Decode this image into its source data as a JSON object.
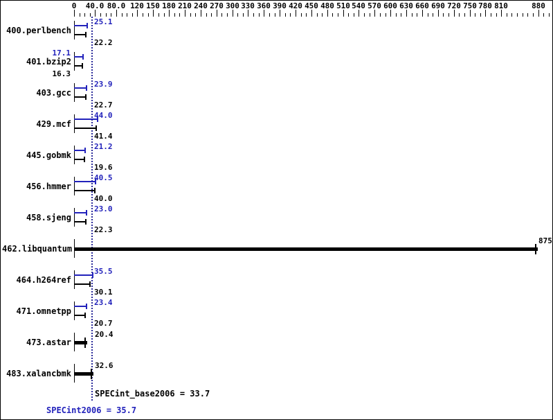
{
  "chart_data": {
    "type": "bar",
    "orientation": "horizontal",
    "title": "",
    "xlabel": "",
    "ylabel": "",
    "axis": {
      "min": 0,
      "max": 880,
      "minor_tick_step": 10,
      "labels": [
        {
          "text": "0",
          "value": 0
        },
        {
          "text": "40.0",
          "value": 40
        },
        {
          "text": "80.0",
          "value": 80
        },
        {
          "text": "120",
          "value": 120
        },
        {
          "text": "150",
          "value": 150
        },
        {
          "text": "180",
          "value": 180
        },
        {
          "text": "210",
          "value": 210
        },
        {
          "text": "240",
          "value": 240
        },
        {
          "text": "270",
          "value": 270
        },
        {
          "text": "300",
          "value": 300
        },
        {
          "text": "330",
          "value": 330
        },
        {
          "text": "360",
          "value": 360
        },
        {
          "text": "390",
          "value": 390
        },
        {
          "text": "420",
          "value": 420
        },
        {
          "text": "450",
          "value": 450
        },
        {
          "text": "480",
          "value": 480
        },
        {
          "text": "510",
          "value": 510
        },
        {
          "text": "540",
          "value": 540
        },
        {
          "text": "570",
          "value": 570
        },
        {
          "text": "600",
          "value": 600
        },
        {
          "text": "630",
          "value": 630
        },
        {
          "text": "660",
          "value": 660
        },
        {
          "text": "690",
          "value": 690
        },
        {
          "text": "720",
          "value": 720
        },
        {
          "text": "750",
          "value": 750
        },
        {
          "text": "780",
          "value": 780
        },
        {
          "text": "810",
          "value": 810
        },
        {
          "text": "880",
          "value": 880
        }
      ]
    },
    "series": [
      {
        "name": "SPECint2006",
        "color": "#2222bb"
      },
      {
        "name": "SPECint_base2006",
        "color": "#000000"
      }
    ],
    "benchmarks": [
      {
        "name": "400.perlbench",
        "peak": 25.1,
        "peak_label": "25.1",
        "base": 22.2,
        "base_label": "22.2",
        "value_label_position": "right_of_mean_line"
      },
      {
        "name": "401.bzip2",
        "peak": 17.1,
        "peak_label": "17.1",
        "base": 16.3,
        "base_label": "16.3",
        "value_label_position": "left_of_bars"
      },
      {
        "name": "403.gcc",
        "peak": 23.9,
        "peak_label": "23.9",
        "base": 22.7,
        "base_label": "22.7",
        "value_label_position": "right_of_mean_line"
      },
      {
        "name": "429.mcf",
        "peak": 44.0,
        "peak_label": "44.0",
        "base": 41.4,
        "base_label": "41.4",
        "value_label_position": "right_of_mean_line"
      },
      {
        "name": "445.gobmk",
        "peak": 21.2,
        "peak_label": "21.2",
        "base": 19.6,
        "base_label": "19.6",
        "value_label_position": "right_of_mean_line"
      },
      {
        "name": "456.hmmer",
        "peak": 40.5,
        "peak_label": "40.5",
        "base": 40.0,
        "base_label": "40.0",
        "value_label_position": "right_of_mean_line"
      },
      {
        "name": "458.sjeng",
        "peak": 23.0,
        "peak_label": "23.0",
        "base": 22.3,
        "base_label": "22.3",
        "value_label_position": "right_of_mean_line"
      },
      {
        "name": "462.libquantum",
        "single_bar": true,
        "value": 875,
        "value_label": "875",
        "value_label_position": "bar_end"
      },
      {
        "name": "464.h264ref",
        "peak": 35.5,
        "peak_label": "35.5",
        "base": 30.1,
        "base_label": "30.1",
        "value_label_position": "right_of_mean_line"
      },
      {
        "name": "471.omnetpp",
        "peak": 23.4,
        "peak_label": "23.4",
        "base": 20.7,
        "base_label": "20.7",
        "value_label_position": "right_of_mean_line"
      },
      {
        "name": "473.astar",
        "single_bar": true,
        "value": 20.4,
        "value_label": "20.4",
        "value_label_position": "right_of_mean_line"
      },
      {
        "name": "483.xalancbmk",
        "single_bar": true,
        "value": 32.6,
        "value_label": "32.6",
        "value_label_position": "right_of_mean_line"
      }
    ],
    "mean_line": {
      "value": 33.7,
      "style": "dashed",
      "color": "#2a2a9a"
    },
    "summary": {
      "base_text": "SPECint_base2006 = 33.7",
      "peak_text": "SPECint2006 = 35.7"
    },
    "colors": {
      "peak": "#2222bb",
      "base": "#000000",
      "mean_line": "#2a2a9a",
      "text": "#000000",
      "background": "#ffffff",
      "border": "#000000"
    }
  }
}
